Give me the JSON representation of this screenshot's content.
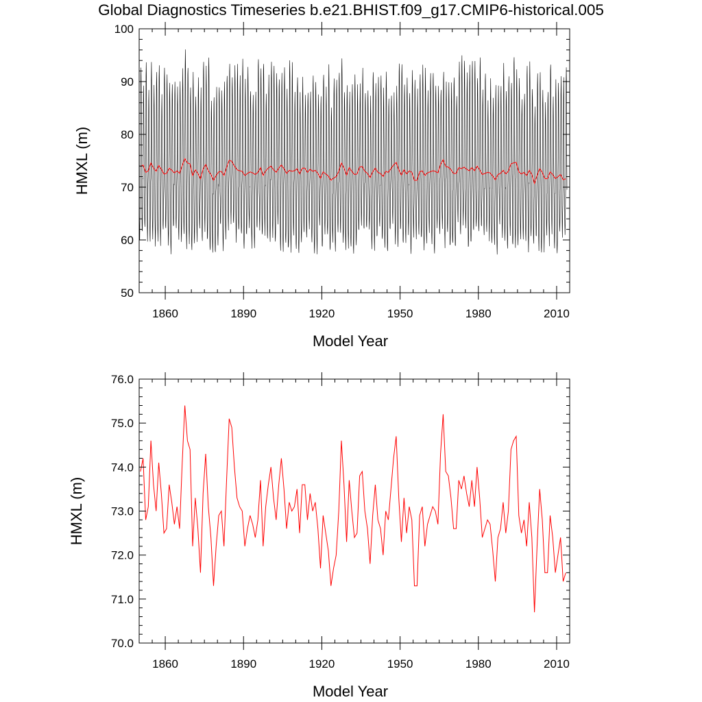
{
  "title": "Global Diagnostics Timeseries b.e21.BHIST.f09_g17.CMIP6-historical.005",
  "colors": {
    "monthly": "#000000",
    "annual": "#ff0000"
  },
  "chart_data": [
    {
      "type": "line",
      "title": "Global Diagnostics Timeseries b.e21.BHIST.f09_g17.CMIP6-historical.005",
      "xlabel": "Model Year",
      "ylabel": "HMXL (m)",
      "xlim": [
        1850,
        2015
      ],
      "ylim": [
        50,
        100
      ],
      "xticks": [
        1860,
        1890,
        1920,
        1950,
        1980,
        2010
      ],
      "xtick_labels": [
        "1860",
        "1890",
        "1920",
        "1950",
        "1980",
        "2010"
      ],
      "yticks": [
        50,
        60,
        70,
        80,
        90,
        100
      ],
      "ytick_labels": [
        "50",
        "60",
        "70",
        "80",
        "90",
        "100"
      ],
      "grid": false,
      "monthly_envelope": {
        "annual_max_approx": 91.5,
        "annual_min_approx": 59.0,
        "extreme_max_approx": 96.0,
        "extreme_min_approx": 55.8
      },
      "series": [
        {
          "role": "monthly",
          "color": "#000000"
        },
        {
          "role": "annual",
          "color": "#ff0000"
        }
      ]
    },
    {
      "type": "line",
      "xlabel": "Model Year",
      "ylabel": "HMXL (m)",
      "xlim": [
        1850,
        2015
      ],
      "ylim": [
        70.0,
        76.0
      ],
      "xticks": [
        1860,
        1890,
        1920,
        1950,
        1980,
        2010
      ],
      "xtick_labels": [
        "1860",
        "1890",
        "1920",
        "1950",
        "1980",
        "2010"
      ],
      "yticks": [
        70,
        71,
        72,
        73,
        74,
        75,
        76
      ],
      "ytick_labels": [
        "70.0",
        "71.0",
        "72.0",
        "73.0",
        "74.0",
        "75.0",
        "76.0"
      ],
      "grid": false,
      "series": [
        {
          "role": "annual",
          "color": "#ff0000",
          "x_start": 1850.5,
          "x_step": 1,
          "values": [
            73.9,
            74.2,
            72.8,
            73.1,
            74.6,
            73.6,
            73.0,
            74.1,
            73.4,
            72.5,
            72.6,
            73.6,
            73.2,
            72.7,
            73.1,
            72.6,
            74.1,
            75.4,
            74.6,
            74.4,
            72.2,
            73.3,
            72.6,
            71.6,
            73.4,
            74.3,
            73.1,
            72.4,
            71.3,
            72.2,
            72.9,
            73.0,
            72.2,
            73.7,
            75.1,
            74.9,
            74.0,
            73.3,
            73.1,
            73.0,
            72.2,
            72.6,
            72.9,
            72.7,
            72.4,
            72.8,
            73.7,
            72.2,
            73.1,
            73.6,
            74.0,
            73.3,
            72.8,
            73.6,
            74.2,
            73.5,
            72.6,
            73.2,
            73.0,
            73.1,
            73.5,
            72.5,
            73.6,
            73.6,
            72.8,
            73.4,
            73.0,
            73.2,
            72.6,
            71.7,
            72.9,
            72.5,
            72.1,
            71.3,
            71.7,
            72.0,
            73.0,
            74.6,
            73.6,
            72.3,
            73.7,
            73.0,
            72.4,
            72.5,
            73.8,
            73.9,
            73.0,
            72.6,
            71.8,
            72.9,
            73.6,
            72.8,
            72.6,
            72.0,
            73.0,
            72.8,
            73.5,
            74.2,
            74.7,
            73.3,
            72.3,
            73.3,
            72.5,
            73.1,
            72.8,
            71.3,
            71.3,
            72.9,
            73.1,
            72.2,
            72.7,
            72.9,
            73.1,
            73.0,
            72.7,
            74.3,
            75.2,
            73.9,
            73.8,
            73.3,
            72.6,
            72.6,
            73.7,
            73.5,
            73.8,
            73.4,
            73.1,
            73.7,
            73.1,
            74.0,
            73.3,
            72.4,
            72.6,
            72.8,
            72.7,
            72.1,
            71.4,
            72.4,
            72.6,
            73.2,
            72.5,
            73.0,
            74.4,
            74.6,
            74.7,
            72.9,
            72.5,
            72.8,
            72.2,
            73.2,
            72.4,
            70.7,
            72.2,
            73.5,
            72.8,
            71.6,
            71.6,
            72.9,
            72.4,
            71.6,
            72.0,
            72.4,
            71.4,
            71.6
          ]
        }
      ]
    }
  ]
}
